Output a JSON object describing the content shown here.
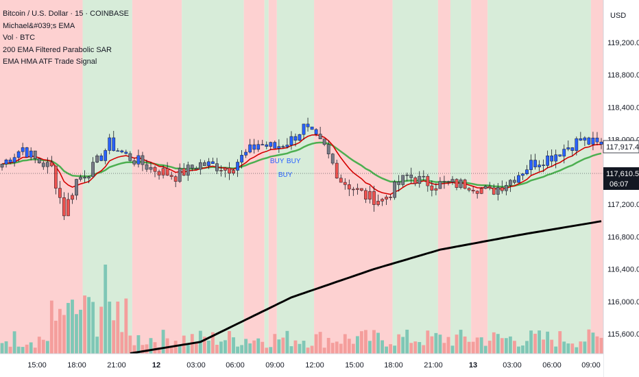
{
  "legend": {
    "title": "Bitcoin / U.S. Dollar · 15 · COINBASE",
    "ind1": "Michael&#039;s EMA",
    "ind2": "Vol · BTC",
    "ind3": "200 EMA Filtered Parabolic SAR",
    "ind4": "EMA HMA ATF Trade Signal"
  },
  "currency": "USD",
  "price_tag": {
    "value": "117,917.42",
    "color": "#ffffff"
  },
  "last_price_tag": {
    "value": "117,610.51",
    "countdown": "06:07",
    "color": "#131722"
  },
  "colors": {
    "bull": "#2962ff",
    "bear": "#ef5350",
    "neutral": "#787b86",
    "ema_fast": "#d50000",
    "ema_slow": "#4caf50",
    "ema200": "#000000",
    "bg_bull": "#d7ecd9",
    "bg_bear": "#fdd1d1",
    "vol_up": "#7fc7b6",
    "vol_down": "#f49e9c"
  },
  "chart_data": {
    "type": "candlestick",
    "y_axis": {
      "ylim": [
        115400,
        119600
      ],
      "ticks": [
        115600,
        116000,
        116400,
        116800,
        117200,
        117600,
        118000,
        118400,
        118800,
        119200
      ],
      "tick_labels": [
        "115,600.00",
        "116,000.00",
        "116,400.00",
        "116,800.00",
        "117,200.00",
        "117,600.00",
        "118,000.00",
        "118,400.00",
        "118,800.00",
        "119,200.00"
      ]
    },
    "x_axis": {
      "tick_labels": [
        "15:00",
        "18:00",
        "21:00",
        "12",
        "03:00",
        "06:00",
        "09:00",
        "12:00",
        "15:00",
        "18:00",
        "21:00",
        "13",
        "03:00",
        "06:00",
        "09:00"
      ],
      "bold_labels": [
        "12",
        "13"
      ]
    },
    "bars": 146,
    "background_regions": [
      {
        "from": 0,
        "to": 20,
        "state": "bear"
      },
      {
        "from": 20,
        "to": 32,
        "state": "bull"
      },
      {
        "from": 32,
        "to": 44,
        "state": "bear"
      },
      {
        "from": 44,
        "to": 59,
        "state": "bull"
      },
      {
        "from": 59,
        "to": 64,
        "state": "bear"
      },
      {
        "from": 64,
        "to": 65,
        "state": "bull"
      },
      {
        "from": 65,
        "to": 67,
        "state": "bear"
      },
      {
        "from": 67,
        "to": 76,
        "state": "bull"
      },
      {
        "from": 76,
        "to": 95,
        "state": "bear"
      },
      {
        "from": 95,
        "to": 106,
        "state": "bull"
      },
      {
        "from": 106,
        "to": 109,
        "state": "bear"
      },
      {
        "from": 109,
        "to": 114,
        "state": "bull"
      },
      {
        "from": 114,
        "to": 118,
        "state": "bear"
      },
      {
        "from": 118,
        "to": 143,
        "state": "bull"
      },
      {
        "from": 143,
        "to": 146,
        "state": "bear"
      }
    ],
    "ema200": [
      [
        0,
        115100
      ],
      [
        48,
        115500
      ],
      [
        70,
        116050
      ],
      [
        90,
        116400
      ],
      [
        106,
        116640
      ],
      [
        125,
        116820
      ],
      [
        146,
        117000
      ]
    ],
    "signals": [
      {
        "bar": 66,
        "label": "BUY",
        "pos": "above"
      },
      {
        "bar": 68,
        "label": "BUY",
        "pos": "below"
      },
      {
        "bar": 70,
        "label": "BUY",
        "pos": "above"
      }
    ]
  }
}
